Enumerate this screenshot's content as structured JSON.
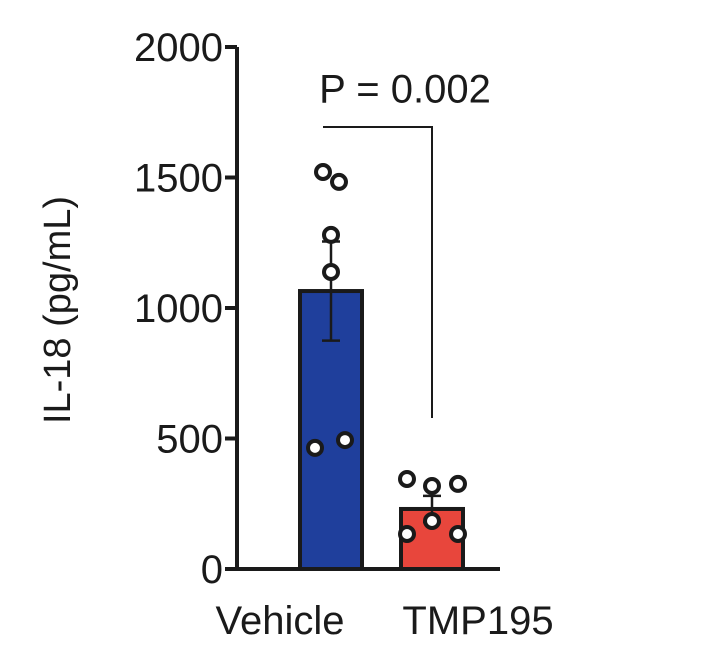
{
  "chart_data": {
    "type": "bar",
    "ylabel": "IL-18 (pg/mL)",
    "categories": [
      "Vehicle",
      "TMP195"
    ],
    "values": [
      1065,
      230
    ],
    "errors": [
      190,
      50
    ],
    "colors": [
      "#1f3f9c",
      "#e8463c"
    ],
    "points": [
      [
        1521,
        1483,
        1280,
        1138,
        464,
        494
      ],
      [
        345,
        318,
        326,
        184,
        134,
        134
      ]
    ],
    "ylim": [
      0,
      2000
    ],
    "yticks": [
      0,
      500,
      1000,
      1500,
      2000
    ],
    "annotation": "P = 0.002"
  }
}
